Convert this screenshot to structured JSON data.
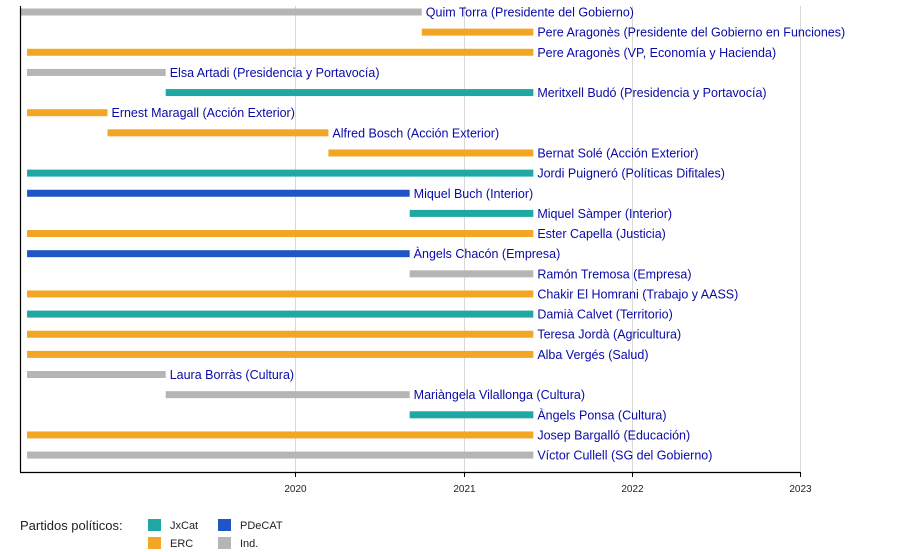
{
  "chart_data": {
    "type": "timeline",
    "title": "",
    "xlim": [
      2018.364,
      2023.0
    ],
    "x_ticks": [
      "2020",
      "2021",
      "2022",
      "2023"
    ],
    "grid": true,
    "legend_title": "Partidos políticos:",
    "legend_placement": "bottom-left",
    "parties": [
      {
        "name": "JxCat",
        "color": "#1fa8a3"
      },
      {
        "name": "PDeCAT",
        "color": "#1f55c4"
      },
      {
        "name": "ERC",
        "color": "#f2a624"
      },
      {
        "name": "Ind.",
        "color": "#b5b5b5"
      }
    ],
    "rows": [
      {
        "label": "Quim Torra (Presidente del Gobierno)",
        "party": "Ind.",
        "start": 2018.364,
        "end": 2020.752
      },
      {
        "label": "Pere Aragonès (Presidente del Gobierno en Funciones)",
        "party": "ERC",
        "start": 2020.752,
        "end": 2021.415
      },
      {
        "label": "Pere Aragonès (VP, Economía y Hacienda)",
        "party": "ERC",
        "start": 2018.406,
        "end": 2021.415
      },
      {
        "label": "Elsa Artadi (Presidencia y Portavocía)",
        "party": "Ind.",
        "start": 2018.406,
        "end": 2019.23
      },
      {
        "label": "Meritxell Budó (Presidencia y Portavocía)",
        "party": "JxCat",
        "start": 2019.23,
        "end": 2021.415
      },
      {
        "label": "Ernest Maragall (Acción Exterior)",
        "party": "ERC",
        "start": 2018.406,
        "end": 2018.884
      },
      {
        "label": "Alfred Bosch (Acción Exterior)",
        "party": "ERC",
        "start": 2018.884,
        "end": 2020.197
      },
      {
        "label": "Bernat Solé (Acción Exterior)",
        "party": "ERC",
        "start": 2020.197,
        "end": 2021.415
      },
      {
        "label": "Jordi Puigneró (Políticas Difitales)",
        "party": "JxCat",
        "start": 2018.406,
        "end": 2021.415
      },
      {
        "label": "Miquel Buch (Interior)",
        "party": "PDeCAT",
        "start": 2018.406,
        "end": 2020.68
      },
      {
        "label": "Miquel Sàmper (Interior)",
        "party": "JxCat",
        "start": 2020.68,
        "end": 2021.415
      },
      {
        "label": "Ester Capella (Justicia)",
        "party": "ERC",
        "start": 2018.406,
        "end": 2021.415
      },
      {
        "label": "Àngels Chacón (Empresa)",
        "party": "PDeCAT",
        "start": 2018.406,
        "end": 2020.68
      },
      {
        "label": "Ramón Tremosa (Empresa)",
        "party": "Ind.",
        "start": 2020.68,
        "end": 2021.415
      },
      {
        "label": "Chakir El Homrani (Trabajo y AASS)",
        "party": "ERC",
        "start": 2018.406,
        "end": 2021.415
      },
      {
        "label": "Damià Calvet (Territorio)",
        "party": "JxCat",
        "start": 2018.406,
        "end": 2021.415
      },
      {
        "label": "Teresa Jordà (Agricultura)",
        "party": "ERC",
        "start": 2018.406,
        "end": 2021.415
      },
      {
        "label": "Alba Vergés (Salud)",
        "party": "ERC",
        "start": 2018.406,
        "end": 2021.415
      },
      {
        "label": "Laura Borràs (Cultura)",
        "party": "Ind.",
        "start": 2018.406,
        "end": 2019.23
      },
      {
        "label": "Mariàngela Vilallonga (Cultura)",
        "party": "Ind.",
        "start": 2019.23,
        "end": 2020.68
      },
      {
        "label": "Àngels Ponsa (Cultura)",
        "party": "JxCat",
        "start": 2020.68,
        "end": 2021.415
      },
      {
        "label": "Josep Bargalló (Educación)",
        "party": "ERC",
        "start": 2018.406,
        "end": 2021.415
      },
      {
        "label": "Víctor Cullell (SG del Gobierno)",
        "party": "Ind.",
        "start": 2018.406,
        "end": 2021.415
      }
    ]
  }
}
